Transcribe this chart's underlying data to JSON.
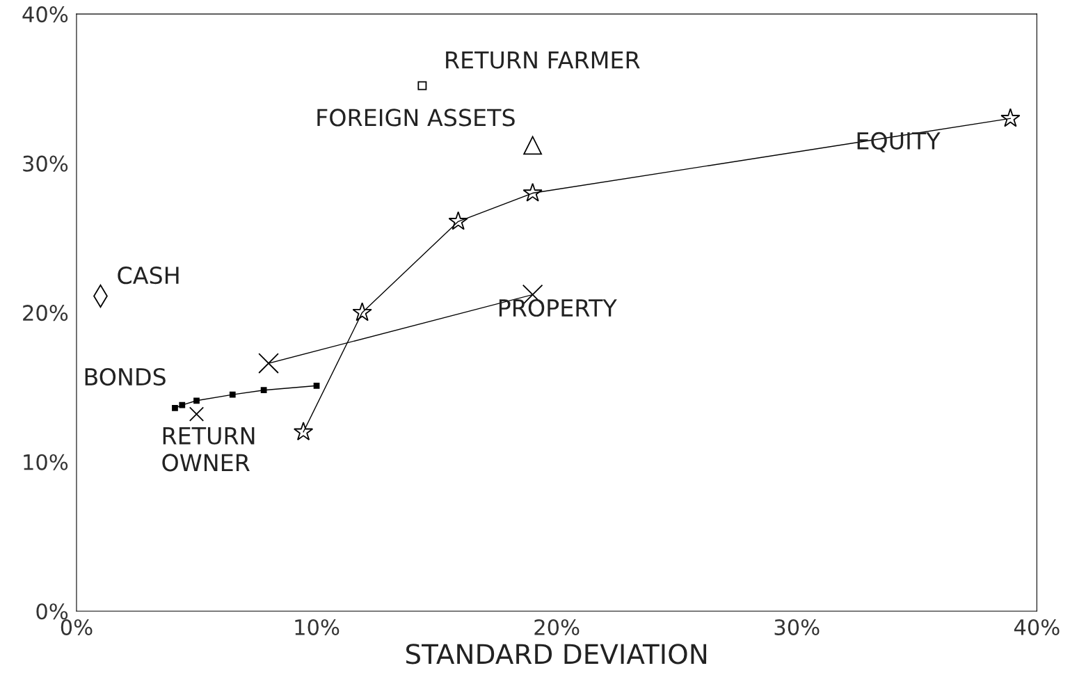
{
  "chart_data": {
    "type": "scatter",
    "xlabel": "STANDARD DEVIATION",
    "xlim": [
      0,
      40
    ],
    "ylim": [
      0,
      40
    ],
    "xticks": [
      {
        "value": 0,
        "label": "0%"
      },
      {
        "value": 10,
        "label": "10%"
      },
      {
        "value": 20,
        "label": "20%"
      },
      {
        "value": 30,
        "label": "30%"
      },
      {
        "value": 40,
        "label": "40%"
      }
    ],
    "yticks": [
      {
        "value": 0,
        "label": "0%"
      },
      {
        "value": 10,
        "label": "10%"
      },
      {
        "value": 20,
        "label": "20%"
      },
      {
        "value": 30,
        "label": "30%"
      },
      {
        "value": 40,
        "label": "40%"
      }
    ],
    "grid": false,
    "legend": false,
    "series": [
      {
        "name": "EQUITY",
        "type": "line",
        "marker": "star",
        "color": "#000000",
        "x": [
          9.45,
          11.9,
          15.9,
          19.0,
          38.9
        ],
        "values": [
          12.0,
          20.0,
          26.1,
          28.0,
          33.0
        ]
      },
      {
        "name": "PROPERTY",
        "type": "line",
        "marker": "cross",
        "color": "#000000",
        "x": [
          8.0,
          19.0
        ],
        "values": [
          16.6,
          21.2
        ]
      },
      {
        "name": "BONDS",
        "type": "line",
        "marker": "square",
        "color": "#000000",
        "x": [
          4.1,
          4.4,
          5.0,
          6.5,
          7.8,
          10.0
        ],
        "values": [
          13.6,
          13.8,
          14.1,
          14.5,
          14.8,
          15.1
        ]
      },
      {
        "name": "CASH",
        "marker": "diamond",
        "color": "#000000",
        "x": [
          1.0
        ],
        "values": [
          21.1
        ]
      },
      {
        "name": "RETURN FARMER",
        "marker": "square",
        "color": "#000000",
        "x": [
          14.4
        ],
        "values": [
          35.2
        ]
      },
      {
        "name": "FOREIGN ASSETS",
        "marker": "triangle",
        "color": "#000000",
        "x": [
          19.0
        ],
        "values": [
          31.2
        ]
      },
      {
        "name": "RETURN\nOWNER",
        "marker": "cross",
        "color": "#000000",
        "x": [
          5.0
        ],
        "values": [
          13.2
        ]
      }
    ]
  }
}
